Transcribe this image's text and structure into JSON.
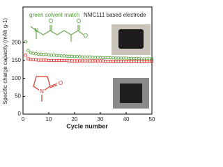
{
  "chart_data": {
    "type": "scatter",
    "x_label": "Cycle number",
    "y_label": "Specific charge capacity (mAh g-1)",
    "annotations": [
      "green solvent match",
      "NMC111 based electrode"
    ],
    "atom_labels": [
      "O",
      "N",
      "O",
      "O",
      "N",
      "O"
    ],
    "x": [
      1,
      2,
      3,
      4,
      5,
      6,
      7,
      8,
      9,
      10,
      11,
      12,
      13,
      14,
      15,
      16,
      17,
      18,
      19,
      20,
      21,
      22,
      23,
      24,
      25,
      26,
      27,
      28,
      29,
      30,
      31,
      32,
      33,
      34,
      35,
      36,
      37,
      38,
      39,
      40,
      41,
      42,
      43,
      44,
      45,
      46,
      47,
      48,
      49,
      50
    ],
    "series": [
      {
        "color": "#4a9a2a",
        "marker": "circle",
        "values": [
          202,
          178,
          172,
          170,
          169,
          168,
          168,
          167,
          167,
          166,
          165,
          165,
          164,
          164,
          163,
          163,
          162,
          162,
          162,
          161,
          161,
          161,
          160,
          160,
          160,
          160,
          159,
          159,
          159,
          159,
          158,
          158,
          158,
          158,
          158,
          157,
          157,
          157,
          157,
          157,
          156,
          156,
          156,
          156,
          156,
          155,
          155,
          155,
          155,
          155
        ]
      },
      {
        "color": "#d9362b",
        "marker": "square",
        "values": [
          165,
          155,
          153,
          152,
          152,
          151,
          151,
          151,
          151,
          150,
          150,
          150,
          150,
          150,
          150,
          150,
          150,
          149,
          149,
          149,
          149,
          149,
          149,
          149,
          149,
          149,
          149,
          149,
          149,
          149,
          149,
          148,
          148,
          148,
          148,
          148,
          148,
          148,
          148,
          148,
          148,
          148,
          148,
          148,
          148,
          148,
          148,
          148,
          148,
          148
        ]
      }
    ],
    "xlim": [
      0,
      50
    ],
    "xticks": [
      0,
      10,
      20,
      30,
      40,
      50
    ],
    "ylim": [
      0,
      300
    ],
    "yticks": [
      0,
      50,
      100,
      150,
      200
    ]
  }
}
